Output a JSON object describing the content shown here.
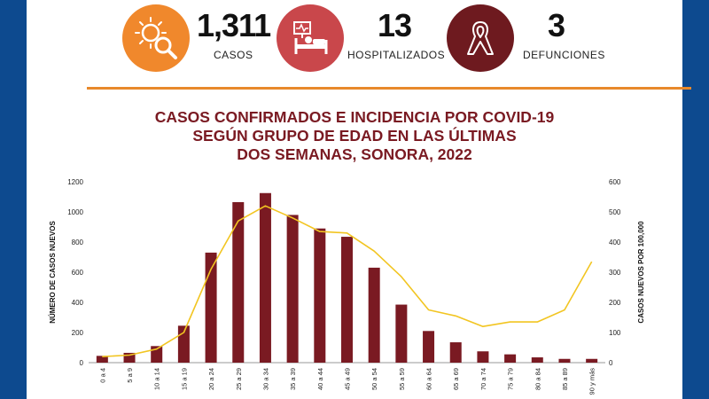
{
  "stats": [
    {
      "value": "1,311",
      "label": "CASOS",
      "icon": "virus-magnifier-icon",
      "color": "#f0882c"
    },
    {
      "value": "13",
      "label": "HOSPITALIZADOS",
      "icon": "hospital-bed-icon",
      "color": "#c9474b"
    },
    {
      "value": "3",
      "label": "DEFUNCIONES",
      "icon": "ribbon-icon",
      "color": "#6e1a1f"
    }
  ],
  "title": {
    "line1": "CASOS CONFIRMADOS E INCIDENCIA POR COVID-19",
    "line2": "SEGÚN GRUPO DE EDAD EN LAS ÚLTIMAS",
    "line3": "DOS SEMANAS, SONORA, 2022"
  },
  "chart_data": {
    "type": "bar",
    "categories": [
      "0 a 4",
      "5 a 9",
      "10 a 14",
      "15 a 19",
      "20 a 24",
      "25 a 29",
      "30 a 34",
      "35 a 39",
      "40 a 44",
      "45 a 49",
      "50 a 54",
      "55 a 59",
      "60 a 64",
      "65 a 69",
      "70 a 74",
      "75 a 79",
      "80 a 84",
      "85 a 89",
      "90 y más"
    ],
    "series": [
      {
        "values": [
          45,
          65,
          110,
          245,
          730,
          1065,
          1125,
          980,
          890,
          835,
          630,
          385,
          210,
          135,
          75,
          55,
          35,
          25,
          25
        ],
        "color": "#7a1a22",
        "axis": "left"
      },
      {
        "values": [
          20,
          25,
          45,
          100,
          310,
          470,
          520,
          480,
          435,
          430,
          370,
          285,
          175,
          155,
          120,
          135,
          135,
          175,
          335
        ],
        "color": "#f2c521",
        "axis": "right"
      }
    ],
    "ylabel": "NÚMERO DE CASOS NUEVOS",
    "y2label": "CASOS NUEVOS POR 100,000",
    "ylim": [
      0,
      1200
    ],
    "y2lim": [
      0,
      600
    ],
    "yticks": [
      0,
      200,
      400,
      600,
      800,
      1000,
      1200
    ],
    "y2ticks": [
      0,
      100,
      200,
      300,
      400,
      500,
      600
    ],
    "grid": false
  }
}
